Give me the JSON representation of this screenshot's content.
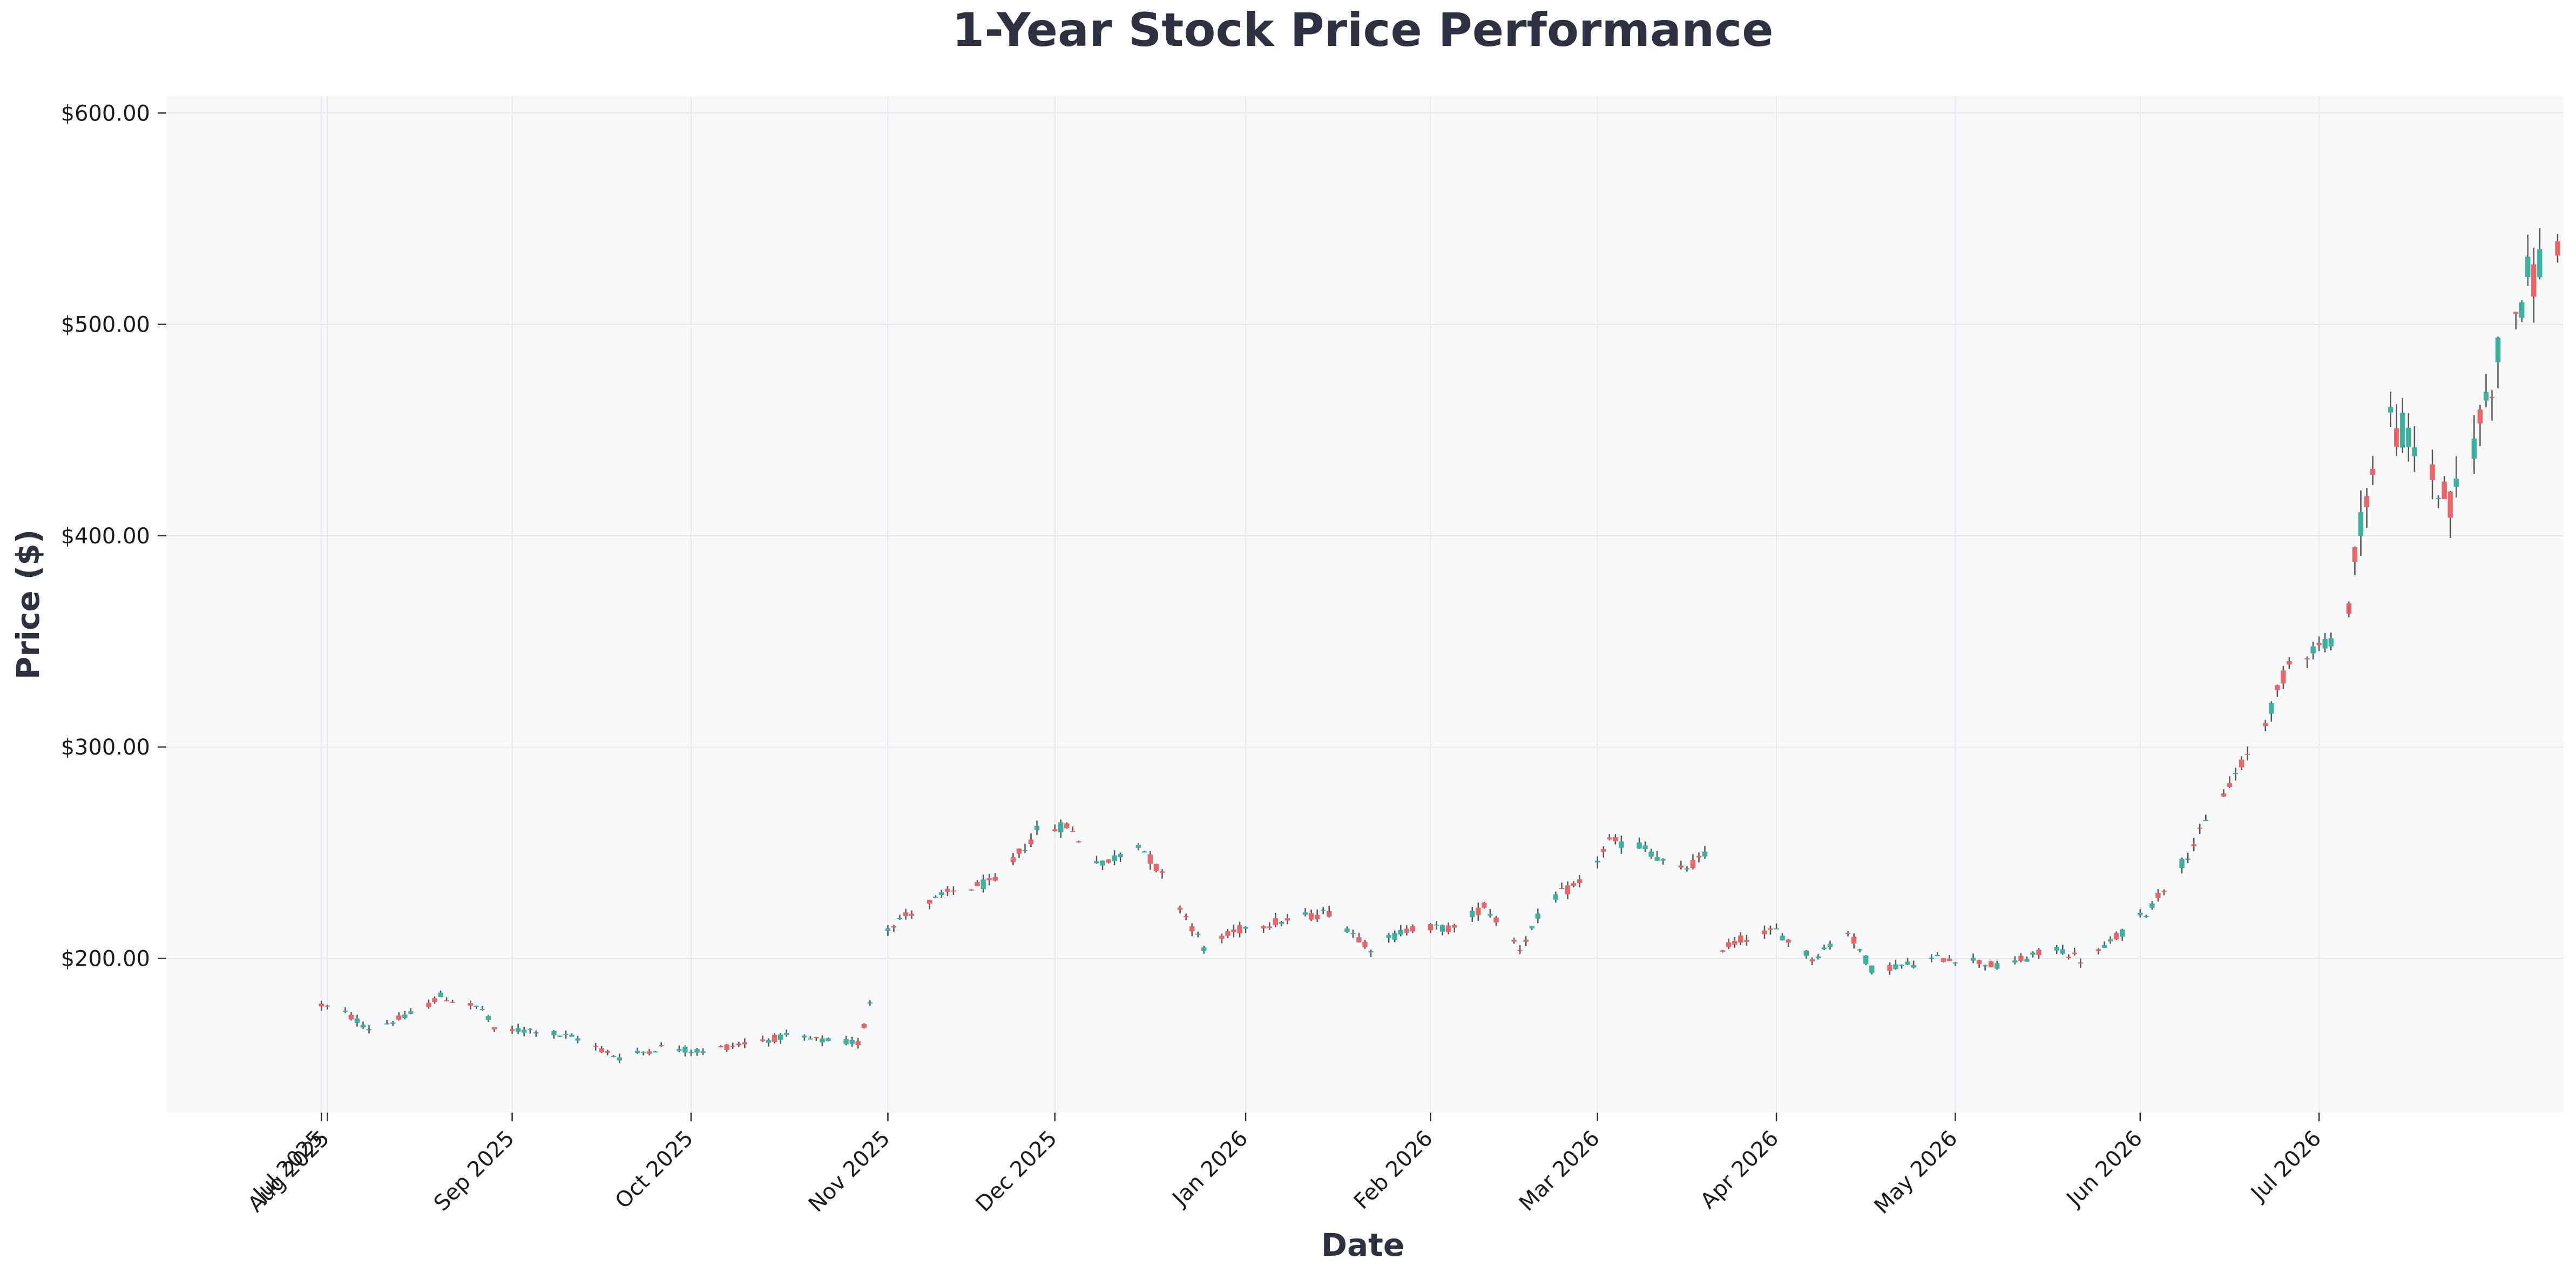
{
  "chart_data": {
    "type": "candlestick",
    "title": "1-Year Stock Price Performance",
    "xlabel": "Date",
    "ylabel": "Price ($)",
    "ylim": [
      127,
      608
    ],
    "xlim": [
      "2025-07-05",
      "2026-08-11"
    ],
    "grid": true,
    "colors": {
      "up": "#3fb0a0",
      "down": "#e8666a",
      "wick": "#555555",
      "plot_bg": "#f7f8fa",
      "grid": "#e8e8ec",
      "text": "#2d3142"
    },
    "y_ticks": [
      {
        "value": 200,
        "label": "$200.00"
      },
      {
        "value": 300,
        "label": "$300.00"
      },
      {
        "value": 400,
        "label": "$400.00"
      },
      {
        "value": 500,
        "label": "$500.00"
      },
      {
        "value": 600,
        "label": "$600.00"
      }
    ],
    "x_ticks": [
      {
        "date": "2025-07-31",
        "label": "Jul 2025"
      },
      {
        "date": "2025-08-01",
        "label": "Aug 2025"
      },
      {
        "date": "2025-09-01",
        "label": "Sep 2025"
      },
      {
        "date": "2025-10-01",
        "label": "Oct 2025"
      },
      {
        "date": "2025-11-03",
        "label": "Nov 2025"
      },
      {
        "date": "2025-12-01",
        "label": "Dec 2025"
      },
      {
        "date": "2026-01-02",
        "label": "Jan 2026"
      },
      {
        "date": "2026-02-02",
        "label": "Feb 2026"
      },
      {
        "date": "2026-03-02",
        "label": "Mar 2026"
      },
      {
        "date": "2026-04-01",
        "label": "Apr 2026"
      },
      {
        "date": "2026-05-01",
        "label": "May 2026"
      },
      {
        "date": "2026-06-01",
        "label": "Jun 2026"
      },
      {
        "date": "2026-07-01",
        "label": "Jul 2026"
      }
    ],
    "anchors": [
      [
        "2025-07-31",
        178
      ],
      [
        "2025-08-04",
        174
      ],
      [
        "2025-08-08",
        167
      ],
      [
        "2025-08-14",
        172
      ],
      [
        "2025-08-20",
        182
      ],
      [
        "2025-08-27",
        176
      ],
      [
        "2025-08-29",
        166
      ],
      [
        "2025-09-05",
        166
      ],
      [
        "2025-09-12",
        162
      ],
      [
        "2025-09-19",
        153
      ],
      [
        "2025-09-26",
        158
      ],
      [
        "2025-10-03",
        156
      ],
      [
        "2025-10-10",
        160
      ],
      [
        "2025-10-17",
        163
      ],
      [
        "2025-10-23",
        161
      ],
      [
        "2025-10-29",
        160
      ],
      [
        "2025-10-30",
        168
      ],
      [
        "2025-11-03",
        215
      ],
      [
        "2025-11-07",
        222
      ],
      [
        "2025-11-14",
        232
      ],
      [
        "2025-11-21",
        236
      ],
      [
        "2025-11-28",
        260
      ],
      [
        "2025-12-03",
        263
      ],
      [
        "2025-12-09",
        244
      ],
      [
        "2025-12-15",
        255
      ],
      [
        "2025-12-20",
        235
      ],
      [
        "2025-12-26",
        205
      ],
      [
        "2026-01-02",
        215
      ],
      [
        "2026-01-09",
        218
      ],
      [
        "2026-01-16",
        222
      ],
      [
        "2026-01-23",
        205
      ],
      [
        "2026-01-30",
        215
      ],
      [
        "2026-02-06",
        214
      ],
      [
        "2026-02-11",
        225
      ],
      [
        "2026-02-17",
        205
      ],
      [
        "2026-02-22",
        228
      ],
      [
        "2026-02-27",
        235
      ],
      [
        "2026-03-04",
        255
      ],
      [
        "2026-03-10",
        253
      ],
      [
        "2026-03-15",
        240
      ],
      [
        "2026-03-20",
        248
      ],
      [
        "2026-03-23",
        205
      ],
      [
        "2026-03-27",
        210
      ],
      [
        "2026-04-01",
        213
      ],
      [
        "2026-04-07",
        200
      ],
      [
        "2026-04-13",
        213
      ],
      [
        "2026-04-17",
        195
      ],
      [
        "2026-04-23",
        197
      ],
      [
        "2026-04-28",
        200
      ],
      [
        "2026-05-03",
        200
      ],
      [
        "2026-05-08",
        196
      ],
      [
        "2026-05-13",
        200
      ],
      [
        "2026-05-18",
        205
      ],
      [
        "2026-05-23",
        198
      ],
      [
        "2026-05-28",
        210
      ],
      [
        "2026-06-02",
        222
      ],
      [
        "2026-06-08",
        245
      ],
      [
        "2026-06-15",
        278
      ],
      [
        "2026-06-21",
        305
      ],
      [
        "2026-06-26",
        340
      ],
      [
        "2026-07-02",
        350
      ],
      [
        "2026-07-05",
        345
      ],
      [
        "2026-07-08",
        410
      ],
      [
        "2026-07-13",
        455
      ],
      [
        "2026-07-18",
        438
      ],
      [
        "2026-07-23",
        412
      ],
      [
        "2026-07-27",
        445
      ],
      [
        "2026-08-01",
        495
      ],
      [
        "2026-08-05",
        520
      ],
      [
        "2026-08-10",
        540
      ]
    ]
  }
}
